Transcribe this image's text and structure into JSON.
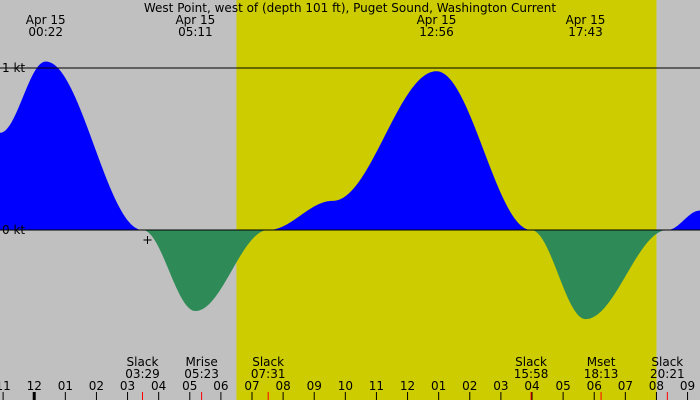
{
  "chart_data": {
    "type": "area",
    "title": "West Point, west of (depth 101 ft), Puget Sound, Washington Current",
    "unit": "kt",
    "x_unit": "hour",
    "x_range": [
      -1.1,
      21.4
    ],
    "y_range": [
      -1.5,
      1.25
    ],
    "daylight": [
      6.5,
      20.0
    ],
    "y_ticks": [
      {
        "value": 1,
        "label": "1 kt"
      },
      {
        "value": 0,
        "label": "0 kt"
      }
    ],
    "hour_labels": [
      "11",
      "12",
      "01",
      "02",
      "03",
      "04",
      "05",
      "06",
      "07",
      "08",
      "09",
      "10",
      "11",
      "12",
      "01",
      "02",
      "03",
      "04",
      "05",
      "06",
      "07",
      "08",
      "09"
    ],
    "peaks": [
      {
        "date": "Apr 15",
        "time": "00:22",
        "x": 0.37,
        "y": 1.04
      },
      {
        "date": "Apr 15",
        "time": "05:11",
        "x": 5.18,
        "y": -0.5
      },
      {
        "date": "Apr 15",
        "time": "12:56",
        "x": 12.93,
        "y": 0.98
      },
      {
        "date": "Apr 15",
        "time": "17:43",
        "x": 17.72,
        "y": -0.55
      }
    ],
    "events": [
      {
        "name": "Slack",
        "time": "03:29",
        "x": 3.48
      },
      {
        "name": "Mrise",
        "time": "05:23",
        "x": 5.38
      },
      {
        "name": "Slack",
        "time": "07:31",
        "x": 7.52
      },
      {
        "name": "Slack",
        "time": "15:58",
        "x": 15.97
      },
      {
        "name": "Mset",
        "time": "18:13",
        "x": 18.22
      },
      {
        "name": "Slack",
        "time": "20:21",
        "x": 20.35
      }
    ],
    "curve": [
      [
        -1.1,
        0.6
      ],
      [
        0.37,
        1.04
      ],
      [
        3.48,
        0
      ],
      [
        5.18,
        -0.5
      ],
      [
        7.52,
        0
      ],
      [
        9.6,
        0.18
      ],
      [
        12.93,
        0.98
      ],
      [
        15.97,
        0
      ],
      [
        17.72,
        -0.55
      ],
      [
        20.35,
        0
      ],
      [
        21.4,
        0.12
      ]
    ],
    "colors": {
      "night": "#c0c0c0",
      "day": "#cccc00",
      "flood": "#0000ff",
      "ebb": "#2e8b57",
      "moon_marker": "#ff0000"
    }
  }
}
